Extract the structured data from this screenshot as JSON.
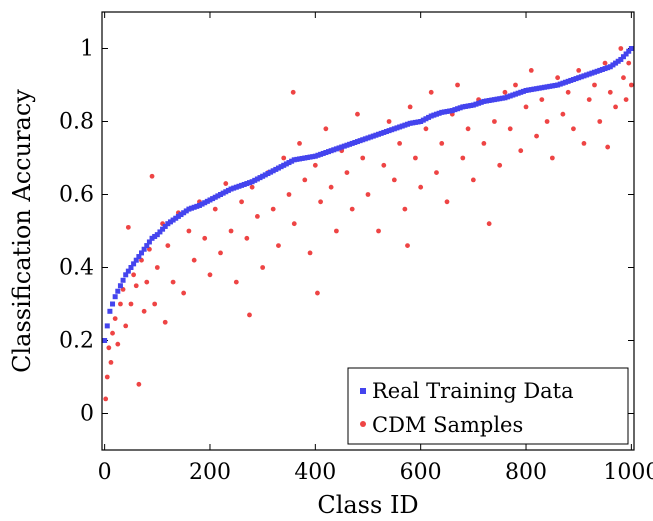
{
  "chart_data": {
    "type": "scatter",
    "xlabel": "Class ID",
    "ylabel": "Classification Accuracy",
    "xlim": [
      -5,
      1005
    ],
    "ylim": [
      -0.1,
      1.1
    ],
    "xticks": [
      "0",
      "200",
      "400",
      "600",
      "800",
      "1000"
    ],
    "yticks": [
      "0",
      "0.2",
      "0.4",
      "0.6",
      "0.8",
      "1"
    ],
    "legend_position": "bottom-right",
    "grid": false,
    "series": [
      {
        "name": "Real Training Data",
        "color": "#4444ee",
        "marker": "square",
        "curve": "sorted",
        "points": [
          [
            0,
            0.2
          ],
          [
            5,
            0.24
          ],
          [
            10,
            0.28
          ],
          [
            20,
            0.32
          ],
          [
            30,
            0.35
          ],
          [
            40,
            0.38
          ],
          [
            50,
            0.4
          ],
          [
            60,
            0.42
          ],
          [
            70,
            0.44
          ],
          [
            80,
            0.46
          ],
          [
            90,
            0.48
          ],
          [
            100,
            0.49
          ],
          [
            120,
            0.52
          ],
          [
            140,
            0.54
          ],
          [
            160,
            0.56
          ],
          [
            180,
            0.57
          ],
          [
            200,
            0.585
          ],
          [
            220,
            0.6
          ],
          [
            240,
            0.615
          ],
          [
            260,
            0.625
          ],
          [
            280,
            0.635
          ],
          [
            300,
            0.65
          ],
          [
            320,
            0.665
          ],
          [
            340,
            0.68
          ],
          [
            360,
            0.695
          ],
          [
            380,
            0.7
          ],
          [
            400,
            0.705
          ],
          [
            420,
            0.715
          ],
          [
            440,
            0.725
          ],
          [
            460,
            0.735
          ],
          [
            480,
            0.745
          ],
          [
            500,
            0.755
          ],
          [
            520,
            0.765
          ],
          [
            540,
            0.775
          ],
          [
            560,
            0.785
          ],
          [
            580,
            0.795
          ],
          [
            600,
            0.8
          ],
          [
            620,
            0.815
          ],
          [
            640,
            0.825
          ],
          [
            660,
            0.83
          ],
          [
            680,
            0.84
          ],
          [
            700,
            0.845
          ],
          [
            720,
            0.855
          ],
          [
            740,
            0.86
          ],
          [
            760,
            0.865
          ],
          [
            780,
            0.875
          ],
          [
            800,
            0.885
          ],
          [
            820,
            0.89
          ],
          [
            840,
            0.895
          ],
          [
            860,
            0.9
          ],
          [
            880,
            0.91
          ],
          [
            900,
            0.92
          ],
          [
            920,
            0.93
          ],
          [
            940,
            0.94
          ],
          [
            960,
            0.95
          ],
          [
            980,
            0.97
          ],
          [
            1000,
            1.0
          ]
        ]
      },
      {
        "name": "CDM Samples",
        "color": "#ee4444",
        "marker": "circle",
        "points": [
          [
            2,
            0.04
          ],
          [
            5,
            0.1
          ],
          [
            8,
            0.18
          ],
          [
            12,
            0.14
          ],
          [
            15,
            0.22
          ],
          [
            20,
            0.26
          ],
          [
            25,
            0.19
          ],
          [
            30,
            0.3
          ],
          [
            35,
            0.34
          ],
          [
            40,
            0.24
          ],
          [
            45,
            0.51
          ],
          [
            50,
            0.3
          ],
          [
            55,
            0.38
          ],
          [
            60,
            0.35
          ],
          [
            65,
            0.08
          ],
          [
            70,
            0.42
          ],
          [
            75,
            0.28
          ],
          [
            80,
            0.36
          ],
          [
            85,
            0.45
          ],
          [
            90,
            0.65
          ],
          [
            95,
            0.3
          ],
          [
            100,
            0.4
          ],
          [
            110,
            0.52
          ],
          [
            115,
            0.25
          ],
          [
            120,
            0.46
          ],
          [
            130,
            0.36
          ],
          [
            140,
            0.55
          ],
          [
            150,
            0.33
          ],
          [
            160,
            0.5
          ],
          [
            170,
            0.42
          ],
          [
            180,
            0.58
          ],
          [
            190,
            0.48
          ],
          [
            200,
            0.38
          ],
          [
            210,
            0.56
          ],
          [
            220,
            0.44
          ],
          [
            230,
            0.63
          ],
          [
            240,
            0.5
          ],
          [
            250,
            0.36
          ],
          [
            260,
            0.58
          ],
          [
            270,
            0.48
          ],
          [
            275,
            0.27
          ],
          [
            280,
            0.62
          ],
          [
            290,
            0.54
          ],
          [
            300,
            0.4
          ],
          [
            310,
            0.66
          ],
          [
            320,
            0.56
          ],
          [
            330,
            0.46
          ],
          [
            340,
            0.7
          ],
          [
            350,
            0.6
          ],
          [
            358,
            0.88
          ],
          [
            360,
            0.52
          ],
          [
            370,
            0.74
          ],
          [
            380,
            0.64
          ],
          [
            390,
            0.44
          ],
          [
            400,
            0.68
          ],
          [
            404,
            0.33
          ],
          [
            410,
            0.58
          ],
          [
            420,
            0.78
          ],
          [
            430,
            0.62
          ],
          [
            440,
            0.5
          ],
          [
            450,
            0.72
          ],
          [
            460,
            0.66
          ],
          [
            470,
            0.56
          ],
          [
            480,
            0.82
          ],
          [
            490,
            0.7
          ],
          [
            500,
            0.6
          ],
          [
            510,
            0.76
          ],
          [
            520,
            0.5
          ],
          [
            530,
            0.68
          ],
          [
            540,
            0.8
          ],
          [
            550,
            0.64
          ],
          [
            560,
            0.74
          ],
          [
            570,
            0.56
          ],
          [
            575,
            0.46
          ],
          [
            580,
            0.84
          ],
          [
            590,
            0.7
          ],
          [
            600,
            0.62
          ],
          [
            610,
            0.78
          ],
          [
            620,
            0.88
          ],
          [
            630,
            0.66
          ],
          [
            640,
            0.74
          ],
          [
            650,
            0.58
          ],
          [
            660,
            0.82
          ],
          [
            670,
            0.9
          ],
          [
            680,
            0.7
          ],
          [
            690,
            0.78
          ],
          [
            700,
            0.64
          ],
          [
            710,
            0.86
          ],
          [
            720,
            0.74
          ],
          [
            730,
            0.52
          ],
          [
            740,
            0.8
          ],
          [
            750,
            0.68
          ],
          [
            760,
            0.88
          ],
          [
            770,
            0.78
          ],
          [
            780,
            0.9
          ],
          [
            790,
            0.72
          ],
          [
            800,
            0.84
          ],
          [
            810,
            0.94
          ],
          [
            820,
            0.76
          ],
          [
            830,
            0.86
          ],
          [
            840,
            0.8
          ],
          [
            850,
            0.7
          ],
          [
            860,
            0.92
          ],
          [
            870,
            0.82
          ],
          [
            880,
            0.88
          ],
          [
            890,
            0.78
          ],
          [
            900,
            0.94
          ],
          [
            910,
            0.74
          ],
          [
            920,
            0.86
          ],
          [
            930,
            0.9
          ],
          [
            940,
            0.8
          ],
          [
            950,
            0.96
          ],
          [
            955,
            0.73
          ],
          [
            960,
            0.88
          ],
          [
            970,
            0.84
          ],
          [
            980,
            1.0
          ],
          [
            985,
            0.92
          ],
          [
            990,
            0.86
          ],
          [
            995,
            0.96
          ],
          [
            1000,
            0.9
          ]
        ]
      }
    ]
  }
}
